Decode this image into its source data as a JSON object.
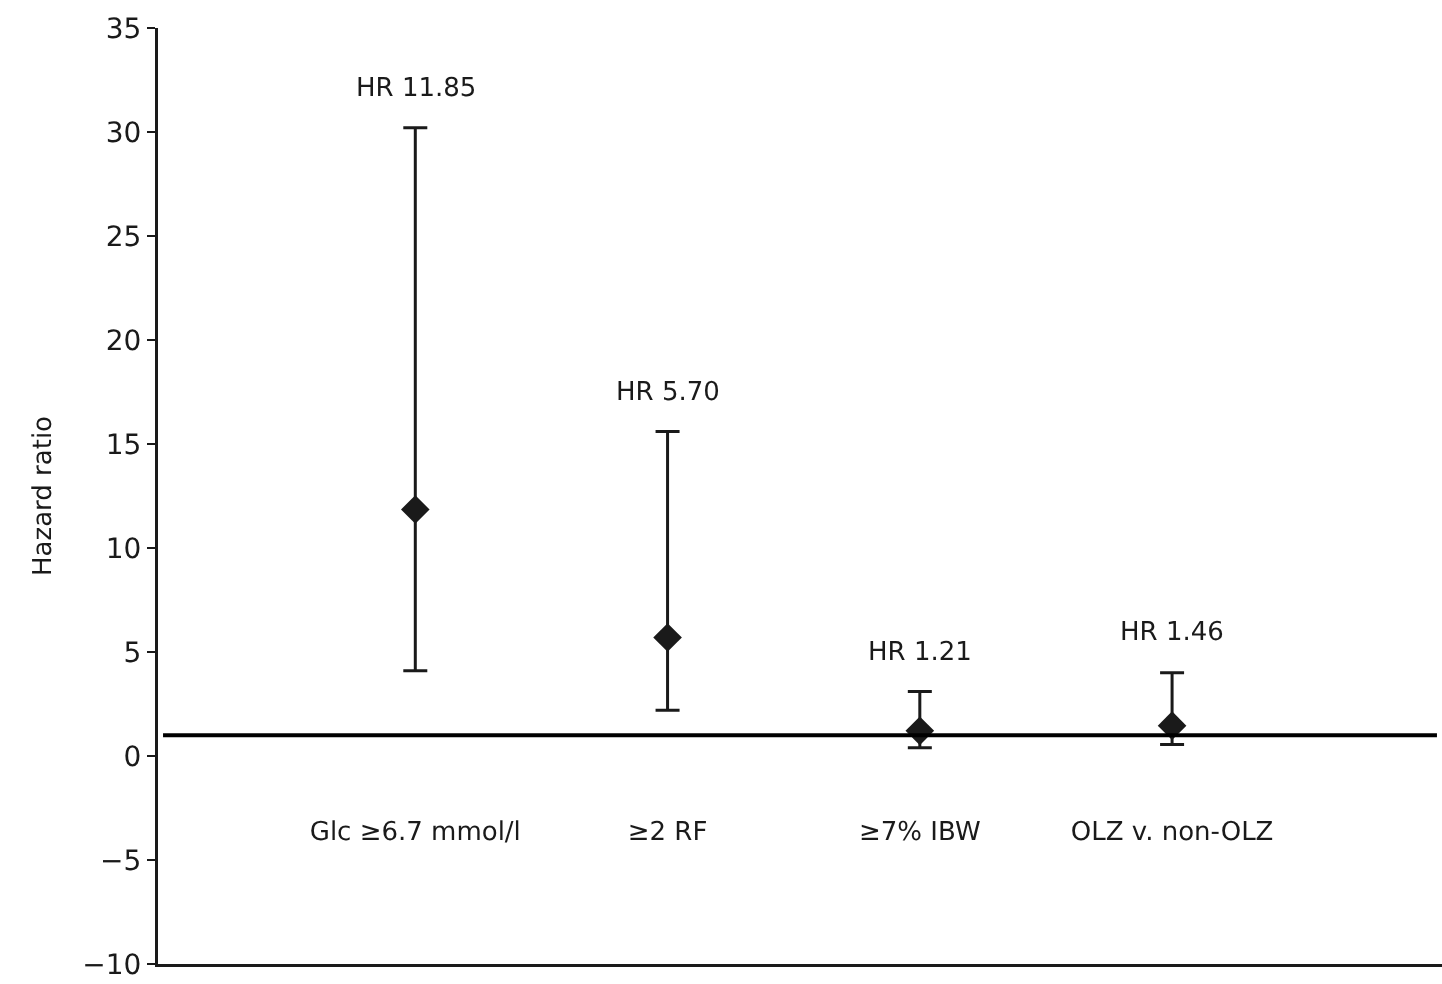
{
  "chart_data": {
    "type": "scatter",
    "ylabel": "Hazard ratio",
    "categories": [
      "Glc ≥6.7 mmol/l",
      "≥2 RF",
      "≥7% IBW",
      "OLZ v. non-OLZ"
    ],
    "values": [
      11.85,
      5.7,
      1.21,
      1.46
    ],
    "errors": [
      [
        4.1,
        30.2
      ],
      [
        2.2,
        15.6
      ],
      [
        0.4,
        3.1
      ],
      [
        0.55,
        4.0
      ]
    ],
    "color": "#1a1a1a",
    "marker": "diamond",
    "grid": false,
    "ylim": [
      -10,
      35
    ],
    "yticks": [
      {
        "value": -10,
        "label": "−10"
      },
      {
        "value": -5,
        "label": "−5"
      },
      0,
      5,
      10,
      15,
      20,
      25,
      30,
      35
    ],
    "ref_lines": [
      {
        "axis": "y",
        "value": 1,
        "color": "#000000"
      }
    ],
    "annotations": [
      "HR 11.85",
      "HR 5.70",
      "HR 1.21",
      "HR 1.46"
    ]
  }
}
